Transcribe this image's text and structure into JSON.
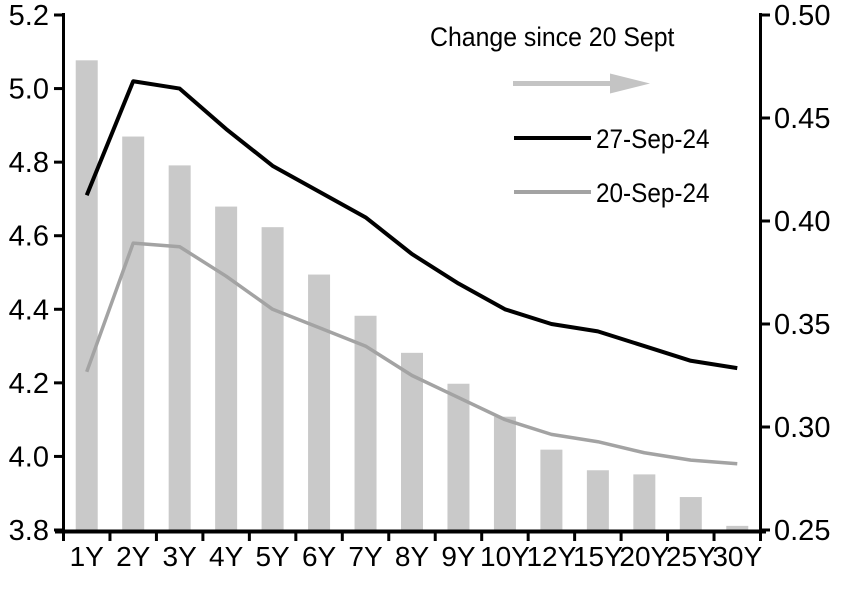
{
  "legend": {
    "title": "Change since 20 Sept",
    "items": [
      {
        "label": "27-Sep-24"
      },
      {
        "label": "20-Sep-24"
      }
    ]
  },
  "colors": {
    "line_27sep": "#000000",
    "line_20sep": "#a3a3a3",
    "bars": "#c9c9c9",
    "arrow": "#c4c4c4",
    "axis": "#000000",
    "text": "#000000"
  },
  "chart_data": {
    "type": "bar",
    "subtype": "combo-bar-and-lines",
    "categories": [
      "1Y",
      "2Y",
      "3Y",
      "4Y",
      "5Y",
      "6Y",
      "7Y",
      "8Y",
      "9Y",
      "10Y",
      "12Y",
      "15Y",
      "20Y",
      "25Y",
      "30Y"
    ],
    "series": [
      {
        "name": "27-Sep-24",
        "type": "line",
        "axis": "left",
        "values": [
          4.71,
          5.02,
          5.0,
          4.89,
          4.79,
          4.72,
          4.65,
          4.55,
          4.47,
          4.4,
          4.36,
          4.34,
          4.3,
          4.26,
          4.24
        ]
      },
      {
        "name": "20-Sep-24",
        "type": "line",
        "axis": "left",
        "values": [
          4.23,
          4.58,
          4.57,
          4.49,
          4.4,
          4.35,
          4.3,
          4.22,
          4.16,
          4.1,
          4.06,
          4.04,
          4.01,
          3.99,
          3.98
        ]
      },
      {
        "name": "Change since 20 Sept",
        "type": "bar",
        "axis": "right",
        "values": [
          0.478,
          0.441,
          0.427,
          0.407,
          0.397,
          0.374,
          0.354,
          0.336,
          0.321,
          0.305,
          0.289,
          0.279,
          0.277,
          0.266,
          0.252
        ]
      }
    ],
    "left_axis": {
      "min": 3.8,
      "max": 5.2,
      "tick_labels": [
        "5.2",
        "5.0",
        "4.8",
        "4.6",
        "4.4",
        "4.2",
        "4.0",
        "3.8"
      ]
    },
    "right_axis": {
      "min": 0.25,
      "max": 0.5,
      "tick_labels": [
        "0.50",
        "0.45",
        "0.40",
        "0.35",
        "0.30",
        "0.25"
      ]
    },
    "grid": false,
    "legend_position": "top-right-inside",
    "title": "",
    "xlabel": "",
    "ylabel": ""
  }
}
